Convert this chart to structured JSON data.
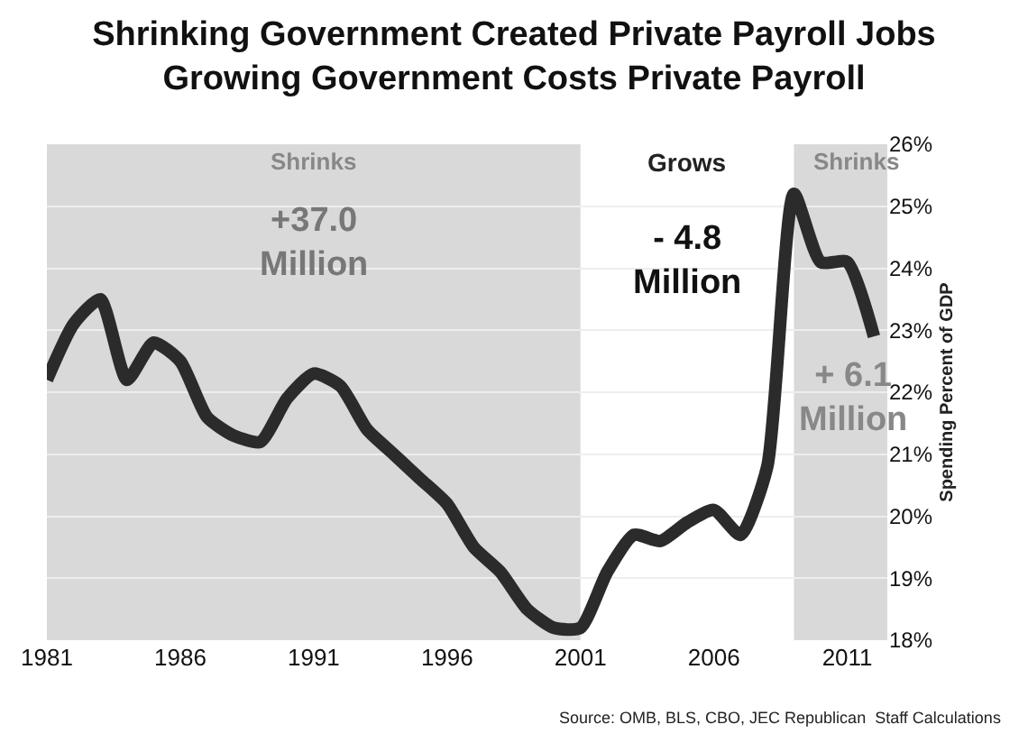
{
  "chart_data": {
    "type": "line",
    "title": "Shrinking Government Created Private Payroll Jobs\nGrowing Government Costs Private Payroll",
    "ylabel": "Spending Percent of GDP",
    "x": [
      1981,
      1982,
      1983,
      1984,
      1985,
      1986,
      1987,
      1988,
      1989,
      1990,
      1991,
      1992,
      1993,
      1994,
      1995,
      1996,
      1997,
      1998,
      1999,
      2000,
      2001,
      2002,
      2003,
      2004,
      2005,
      2006,
      2007,
      2008,
      2009,
      2010,
      2011,
      2012
    ],
    "series": [
      {
        "color": "#2b2b2b",
        "values": [
          22.2,
          23.1,
          23.5,
          22.2,
          22.8,
          22.5,
          21.6,
          21.3,
          21.2,
          21.9,
          22.3,
          22.1,
          21.4,
          21.0,
          20.6,
          20.2,
          19.5,
          19.1,
          18.5,
          18.2,
          18.2,
          19.1,
          19.7,
          19.6,
          19.9,
          20.1,
          19.7,
          20.8,
          25.2,
          24.1,
          24.1,
          22.9
        ]
      }
    ],
    "xlim": [
      1981,
      2012.5
    ],
    "xticks": [
      1981,
      1986,
      1991,
      1996,
      2001,
      2006,
      2011
    ],
    "ylim": [
      18,
      26
    ],
    "yticks": [
      {
        "value": 18,
        "label": "18%"
      },
      {
        "value": 19,
        "label": "19%"
      },
      {
        "value": 20,
        "label": "20%"
      },
      {
        "value": 21,
        "label": "21%"
      },
      {
        "value": 22,
        "label": "22%"
      },
      {
        "value": 23,
        "label": "23%"
      },
      {
        "value": 24,
        "label": "24%"
      },
      {
        "value": 25,
        "label": "25%"
      },
      {
        "value": 26,
        "label": "26%"
      }
    ],
    "grid": "y",
    "marker": "none",
    "line_style": "solid",
    "legend": false,
    "bands": [
      {
        "axis": "x",
        "from": 1981,
        "to": 2001,
        "label": "Shrinks",
        "color": "#d9d9d9"
      },
      {
        "axis": "x",
        "from": 2009,
        "to": 2012.5,
        "label": "Shrinks",
        "color": "#d9d9d9"
      }
    ],
    "annotations": [
      "+37.0\nMillion",
      "Grows",
      "- 4.8\nMillion",
      "+ 6.1\nMillion",
      "Source: OMB, BLS, CBO, JEC Republican  Staff Calculations"
    ]
  }
}
